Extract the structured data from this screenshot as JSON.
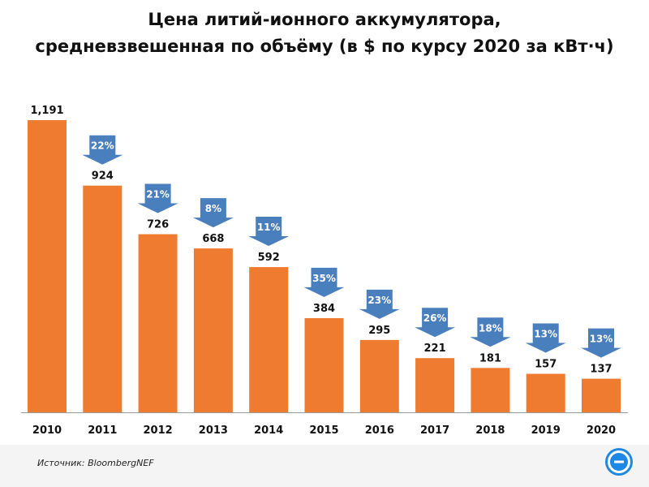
{
  "title_lines": [
    "Цена литий-ионного аккумулятора,",
    "средневзвешенная по объёму (в $ по курсу 2020 за кВт·ч)"
  ],
  "source": "Источник: BloombergNEF",
  "logo_icon": "e-circle-logo-icon",
  "colors": {
    "bar": "#ef7b30",
    "arrow": "#4a7fbd",
    "text": "#111111",
    "axis": "#9a9a9a",
    "logo": "#1e88e5"
  },
  "chart_data": {
    "type": "bar",
    "title": "Цена литий-ионного аккумулятора, средневзвешенная по объёму (в $ по курсу 2020 за кВт·ч)",
    "categories": [
      "2010",
      "2011",
      "2012",
      "2013",
      "2014",
      "2015",
      "2016",
      "2017",
      "2018",
      "2019",
      "2020"
    ],
    "values": [
      1191,
      924,
      726,
      668,
      592,
      384,
      295,
      221,
      181,
      157,
      137
    ],
    "value_labels": [
      "1,191",
      "924",
      "726",
      "668",
      "592",
      "384",
      "295",
      "221",
      "181",
      "157",
      "137"
    ],
    "change_labels": [
      "",
      "22%",
      "21%",
      "8%",
      "11%",
      "35%",
      "23%",
      "26%",
      "18%",
      "13%",
      "13%"
    ],
    "xlabel": "",
    "ylabel": "",
    "ylim": [
      0,
      1191
    ],
    "grid": false,
    "legend": "none"
  }
}
